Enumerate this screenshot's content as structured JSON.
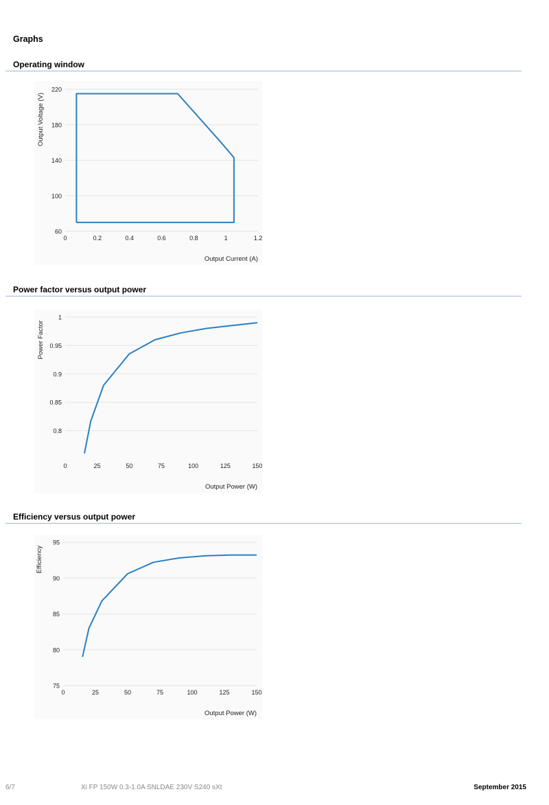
{
  "page": {
    "heading": "Graphs"
  },
  "sections": [
    {
      "title": "Operating window"
    },
    {
      "title": "Power factor versus output power"
    },
    {
      "title": "Efficiency versus output power"
    }
  ],
  "footer": {
    "page_number": "6/7",
    "product": "Xi FP 150W 0.3-1.0A SNLDAE 230V S240 sXt",
    "date": "September 2015"
  },
  "colors": {
    "series": "#2a7fc1",
    "rule": "#9fb6d4",
    "grid": "#e4e4e4"
  },
  "chart_data": [
    {
      "type": "line",
      "title": "Operating window",
      "xlabel": "Output Current (A)",
      "ylabel": "Output Voltage (V)",
      "xlim": [
        0,
        1.2
      ],
      "ylim": [
        60,
        220
      ],
      "xticks": [
        0,
        0.2,
        0.4,
        0.6,
        0.8,
        1,
        1.2
      ],
      "xtick_labels": [
        "0",
        "0.2",
        "0.4",
        "0.6",
        "0.8",
        "1",
        "1.2"
      ],
      "yticks": [
        60,
        100,
        140,
        180,
        220
      ],
      "ytick_labels": [
        "60",
        "100",
        "140",
        "180",
        "220"
      ],
      "grid": true,
      "series": [
        {
          "x": [
            0.07,
            0.07,
            0.7,
            0.97,
            1.05,
            1.05,
            0.07
          ],
          "y": [
            70,
            215,
            215,
            160,
            143,
            70,
            70
          ]
        }
      ]
    },
    {
      "type": "line",
      "title": "Power factor versus output power",
      "xlabel": "Output Power (W)",
      "ylabel": "Power Factor",
      "xlim": [
        0,
        150
      ],
      "ylim": [
        0.75,
        1.0
      ],
      "xticks": [
        0,
        25,
        50,
        75,
        100,
        125,
        150
      ],
      "xtick_labels": [
        "0",
        "25",
        "50",
        "75",
        "100",
        "125",
        "150"
      ],
      "yticks": [
        0.8,
        0.85,
        0.9,
        0.95,
        1.0
      ],
      "ytick_labels": [
        "0.8",
        "0.85",
        "0.9",
        "0.95",
        "1"
      ],
      "grid": true,
      "series": [
        {
          "x": [
            15,
            20,
            30,
            50,
            70,
            90,
            110,
            130,
            150
          ],
          "y": [
            0.76,
            0.817,
            0.88,
            0.935,
            0.96,
            0.972,
            0.98,
            0.985,
            0.99
          ]
        }
      ]
    },
    {
      "type": "line",
      "title": "Efficiency versus output power",
      "xlabel": "Output Power (W)",
      "ylabel": "Efficiency",
      "xlim": [
        0,
        150
      ],
      "ylim": [
        75,
        95
      ],
      "xticks": [
        0,
        25,
        50,
        75,
        100,
        125,
        150
      ],
      "xtick_labels": [
        "0",
        "25",
        "50",
        "75",
        "100",
        "125",
        "150"
      ],
      "yticks": [
        75,
        80,
        85,
        90,
        95
      ],
      "ytick_labels": [
        "75",
        "80",
        "85",
        "90",
        "95"
      ],
      "grid": true,
      "series": [
        {
          "x": [
            15,
            20,
            30,
            50,
            70,
            90,
            110,
            130,
            150
          ],
          "y": [
            79,
            83,
            86.8,
            90.6,
            92.2,
            92.8,
            93.1,
            93.2,
            93.2
          ]
        }
      ]
    }
  ]
}
